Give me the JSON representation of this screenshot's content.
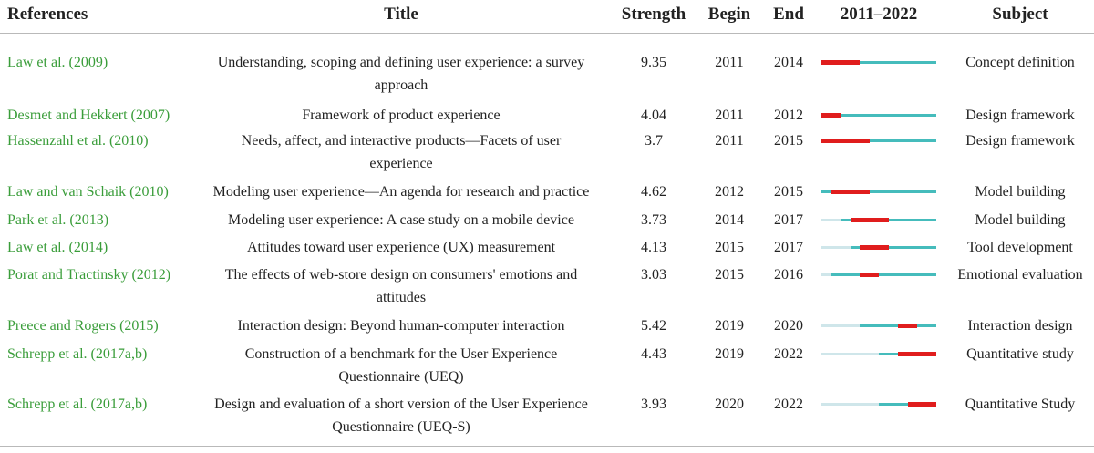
{
  "headers": {
    "references": "References",
    "title": "Title",
    "strength": "Strength",
    "begin": "Begin",
    "end": "End",
    "range": "2011–2022",
    "subject": "Subject"
  },
  "timeline": {
    "start": 2011,
    "end": 2022
  },
  "rows": [
    {
      "ref_author": "Law et al. (",
      "ref_year": "2009",
      "ref_close": ")",
      "title_1": "Understanding, scoping and defining user experience: a survey",
      "title_2": "approach",
      "strength": "9.35",
      "begin": "2011",
      "end": "2014",
      "first_year": 2011,
      "subject": "Concept definition"
    },
    {
      "ref_author": "Desmet and Hekkert (",
      "ref_year": "2007",
      "ref_close": ")",
      "title_1": "Framework of product experience",
      "title_2": "",
      "strength": "4.04",
      "begin": "2011",
      "end": "2012",
      "first_year": 2011,
      "subject": "Design framework"
    },
    {
      "ref_author": "Hassenzahl et al. (",
      "ref_year": "2010",
      "ref_close": ")",
      "title_1": "Needs, affect, and interactive products—Facets of user",
      "title_2": "experience",
      "strength": "3.7",
      "begin": "2011",
      "end": "2015",
      "first_year": 2011,
      "subject": "Design framework"
    },
    {
      "ref_author": "Law and van Schaik (",
      "ref_year": "2010",
      "ref_close": ")",
      "title_1": "Modeling user experience—An agenda for research and practice",
      "title_2": "",
      "strength": "4.62",
      "begin": "2012",
      "end": "2015",
      "first_year": 2011,
      "subject": "Model building"
    },
    {
      "ref_author": "Park et al. (",
      "ref_year": "2013",
      "ref_close": ")",
      "title_1": "Modeling user experience: A case study on a mobile device",
      "title_2": "",
      "strength": "3.73",
      "begin": "2014",
      "end": "2017",
      "first_year": 2013,
      "subject": "Model building"
    },
    {
      "ref_author": "Law et al. (",
      "ref_year": "2014",
      "ref_close": ")",
      "title_1": "Attitudes toward user experience (UX) measurement",
      "title_2": "",
      "strength": "4.13",
      "begin": "2015",
      "end": "2017",
      "first_year": 2014,
      "subject": "Tool development"
    },
    {
      "ref_author": "Porat and Tractinsky (",
      "ref_year": "2012",
      "ref_close": ")",
      "title_1": "The effects of web-store design on consumers' emotions and",
      "title_2": "attitudes",
      "strength": "3.03",
      "begin": "2015",
      "end": "2016",
      "first_year": 2012,
      "subject": "Emotional evaluation"
    },
    {
      "ref_author": "Preece and Rogers (",
      "ref_year": "2015",
      "ref_close": ")",
      "title_1": "Interaction design: Beyond human-computer interaction",
      "title_2": "",
      "strength": "5.42",
      "begin": "2019",
      "end": "2020",
      "first_year": 2015,
      "subject": "Interaction design"
    },
    {
      "ref_author": "Schrepp et al. (",
      "ref_year": "2017a,b",
      "ref_close": ")",
      "title_1": "Construction of a benchmark for the User Experience",
      "title_2": "Questionnaire (UEQ)",
      "strength": "4.43",
      "begin": "2019",
      "end": "2022",
      "first_year": 2017,
      "subject": "Quantitative study"
    },
    {
      "ref_author": "Schrepp et al. (",
      "ref_year": "2017a,b",
      "ref_close": ")",
      "title_1": "Design and evaluation of a short version of the User Experience",
      "title_2": "Questionnaire (UEQ-S)",
      "strength": "3.93",
      "begin": "2020",
      "end": "2022",
      "first_year": 2017,
      "subject": "Quantitative Study"
    }
  ],
  "colors": {
    "burst": "#e01d1d",
    "active": "#45bcbc",
    "before": "#cfe6ea",
    "reference_year": "#3a9d3a"
  }
}
